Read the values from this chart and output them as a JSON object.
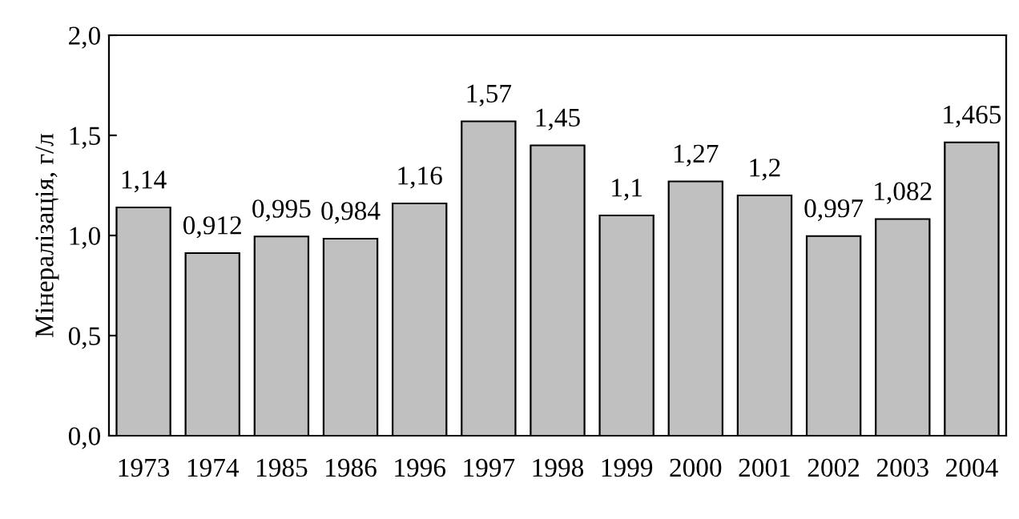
{
  "chart_data": {
    "type": "bar",
    "ylabel": "Мінералізація, г/л",
    "categories": [
      "1973",
      "1974",
      "1985",
      "1986",
      "1996",
      "1997",
      "1998",
      "1999",
      "2000",
      "2001",
      "2002",
      "2003",
      "2004"
    ],
    "values": [
      1.14,
      0.912,
      0.995,
      0.984,
      1.16,
      1.57,
      1.45,
      1.1,
      1.27,
      1.2,
      0.997,
      1.082,
      1.465
    ],
    "value_labels": [
      "1,14",
      "0,912",
      "0,995",
      "0,984",
      "1,16",
      "1,57",
      "1,45",
      "1,1",
      "1,27",
      "1,2",
      "0,997",
      "1,082",
      "1,465"
    ],
    "color": "#c0c0c0",
    "ylim": [
      0,
      2
    ],
    "yticks": [
      {
        "value": 0,
        "label": "0,0"
      },
      {
        "value": 0.5,
        "label": "0,5"
      },
      {
        "value": 1,
        "label": "1,0"
      },
      {
        "value": 1.5,
        "label": "1,5"
      },
      {
        "value": 2,
        "label": "2,0"
      }
    ],
    "grid": false,
    "legend": false
  }
}
